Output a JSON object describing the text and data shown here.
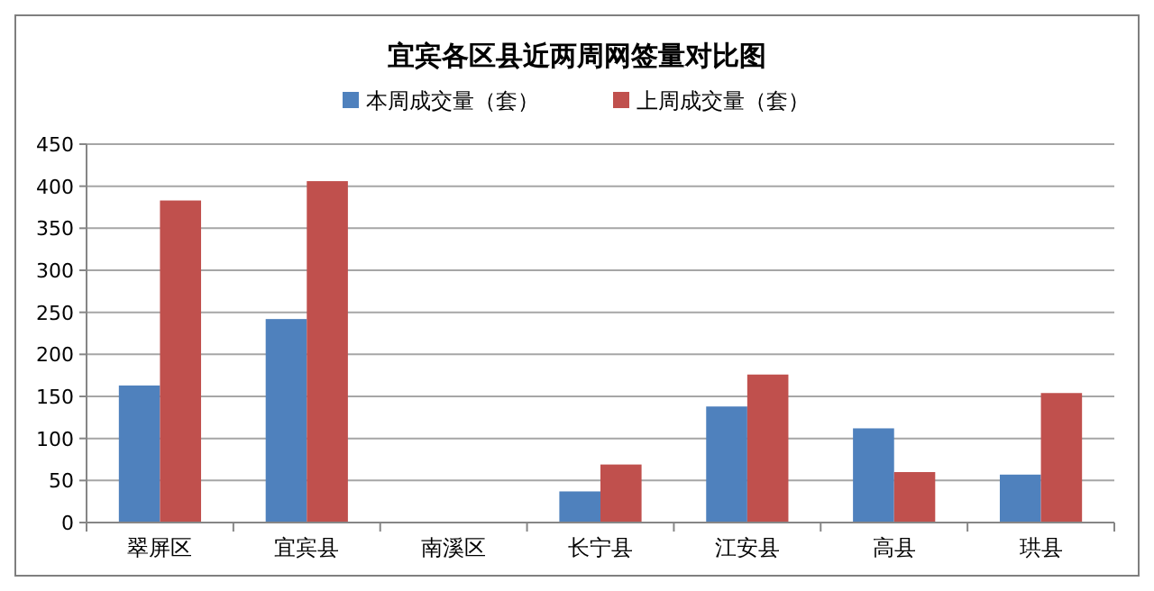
{
  "chart_data": {
    "type": "bar",
    "title": "宜宾各区县近两周网签量对比图",
    "categories": [
      "翠屏区",
      "宜宾县",
      "南溪区",
      "长宁县",
      "江安县",
      "高县",
      "珙县"
    ],
    "series": [
      {
        "name": "本周成交量（套）",
        "color": "#4f81bd",
        "values": [
          163,
          242,
          0,
          37,
          138,
          112,
          57
        ]
      },
      {
        "name": "上周成交量（套）",
        "color": "#c0504d",
        "values": [
          383,
          406,
          0,
          69,
          176,
          60,
          154
        ]
      }
    ],
    "ylim": [
      0,
      450
    ],
    "yticks": [
      0,
      50,
      100,
      150,
      200,
      250,
      300,
      350,
      400,
      450
    ],
    "grid": "y",
    "legend": "top"
  }
}
